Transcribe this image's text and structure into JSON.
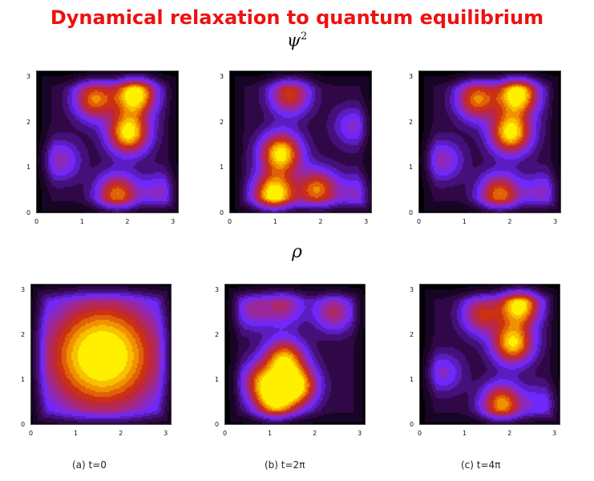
{
  "title": "Dynamical relaxation to quantum equilibrium",
  "row_labels": {
    "top_base": "ψ",
    "top_sup": "2",
    "bottom": "ρ"
  },
  "captions": [
    "(a) t=0",
    "(b) t=2π",
    "(c) t=4π"
  ],
  "colors": {
    "title": "#ee1111",
    "low": "#000000",
    "mid": "#6a2cff",
    "high": "#ffee00"
  },
  "chart_data": [
    {
      "type": "heatmap",
      "panel": "psi2-a",
      "xlim": [
        0,
        3.14
      ],
      "ylim": [
        0,
        3.14
      ],
      "xticks": [
        "0",
        "1",
        "2",
        "3"
      ],
      "yticks": [
        "0",
        "1",
        "2",
        "3"
      ],
      "peaks": [
        {
          "x": 2.15,
          "y": 2.65,
          "amp": 0.95
        },
        {
          "x": 1.25,
          "y": 2.55,
          "amp": 0.7
        },
        {
          "x": 2.0,
          "y": 1.8,
          "amp": 0.9
        },
        {
          "x": 1.75,
          "y": 0.45,
          "amp": 0.7
        },
        {
          "x": 0.5,
          "y": 1.2,
          "amp": 0.35
        },
        {
          "x": 2.7,
          "y": 0.5,
          "amp": 0.3
        }
      ]
    },
    {
      "type": "heatmap",
      "panel": "psi2-b",
      "xlim": [
        0,
        3.14
      ],
      "ylim": [
        0,
        3.14
      ],
      "xticks": [
        "0",
        "1",
        "2",
        "3"
      ],
      "yticks": [
        "0",
        "1",
        "2",
        "3"
      ],
      "peaks": [
        {
          "x": 1.3,
          "y": 2.65,
          "amp": 0.6
        },
        {
          "x": 1.1,
          "y": 1.35,
          "amp": 0.9
        },
        {
          "x": 0.95,
          "y": 0.45,
          "amp": 0.95
        },
        {
          "x": 1.9,
          "y": 0.55,
          "amp": 0.7
        },
        {
          "x": 2.7,
          "y": 1.95,
          "amp": 0.3
        },
        {
          "x": 2.8,
          "y": 0.45,
          "amp": 0.3
        }
      ]
    },
    {
      "type": "heatmap",
      "panel": "psi2-c",
      "xlim": [
        0,
        3.14
      ],
      "ylim": [
        0,
        3.14
      ],
      "xticks": [
        "0",
        "1",
        "2",
        "3"
      ],
      "yticks": [
        "0",
        "1",
        "2",
        "3"
      ],
      "peaks": [
        {
          "x": 2.15,
          "y": 2.65,
          "amp": 0.95
        },
        {
          "x": 1.25,
          "y": 2.55,
          "amp": 0.7
        },
        {
          "x": 2.0,
          "y": 1.8,
          "amp": 0.9
        },
        {
          "x": 1.75,
          "y": 0.45,
          "amp": 0.7
        },
        {
          "x": 0.5,
          "y": 1.2,
          "amp": 0.35
        },
        {
          "x": 2.7,
          "y": 0.5,
          "amp": 0.3
        }
      ]
    },
    {
      "type": "heatmap",
      "panel": "rho-a",
      "xlim": [
        0,
        3.14
      ],
      "ylim": [
        0,
        3.14
      ],
      "xticks": [
        "0",
        "1",
        "2",
        "3"
      ],
      "yticks": [
        "0",
        "1",
        "2",
        "3"
      ],
      "peaks": [
        {
          "x": 1.57,
          "y": 1.57,
          "amp": 1.0
        }
      ]
    },
    {
      "type": "heatmap",
      "panel": "rho-b",
      "xlim": [
        0,
        3.14
      ],
      "ylim": [
        0,
        3.14
      ],
      "xticks": [
        "0",
        "1",
        "2",
        "3"
      ],
      "yticks": [
        "0",
        "1",
        "2",
        "3"
      ],
      "peaks": [
        {
          "x": 1.3,
          "y": 1.5,
          "amp": 0.75
        },
        {
          "x": 1.6,
          "y": 0.9,
          "amp": 0.8
        },
        {
          "x": 1.1,
          "y": 0.55,
          "amp": 0.75
        },
        {
          "x": 0.8,
          "y": 1.0,
          "amp": 0.6
        },
        {
          "x": 2.4,
          "y": 2.55,
          "amp": 0.45
        },
        {
          "x": 1.3,
          "y": 2.7,
          "amp": 0.4
        },
        {
          "x": 0.6,
          "y": 2.6,
          "amp": 0.35
        }
      ]
    },
    {
      "type": "heatmap",
      "panel": "rho-c",
      "xlim": [
        0,
        3.14
      ],
      "ylim": [
        0,
        3.14
      ],
      "xticks": [
        "0",
        "1",
        "2",
        "3"
      ],
      "yticks": [
        "0",
        "1",
        "2",
        "3"
      ],
      "peaks": [
        {
          "x": 2.2,
          "y": 2.7,
          "amp": 0.9
        },
        {
          "x": 1.35,
          "y": 2.5,
          "amp": 0.55
        },
        {
          "x": 2.05,
          "y": 1.85,
          "amp": 0.85
        },
        {
          "x": 1.8,
          "y": 0.5,
          "amp": 0.75
        },
        {
          "x": 0.5,
          "y": 1.2,
          "amp": 0.3
        },
        {
          "x": 2.7,
          "y": 0.5,
          "amp": 0.25
        }
      ]
    }
  ]
}
